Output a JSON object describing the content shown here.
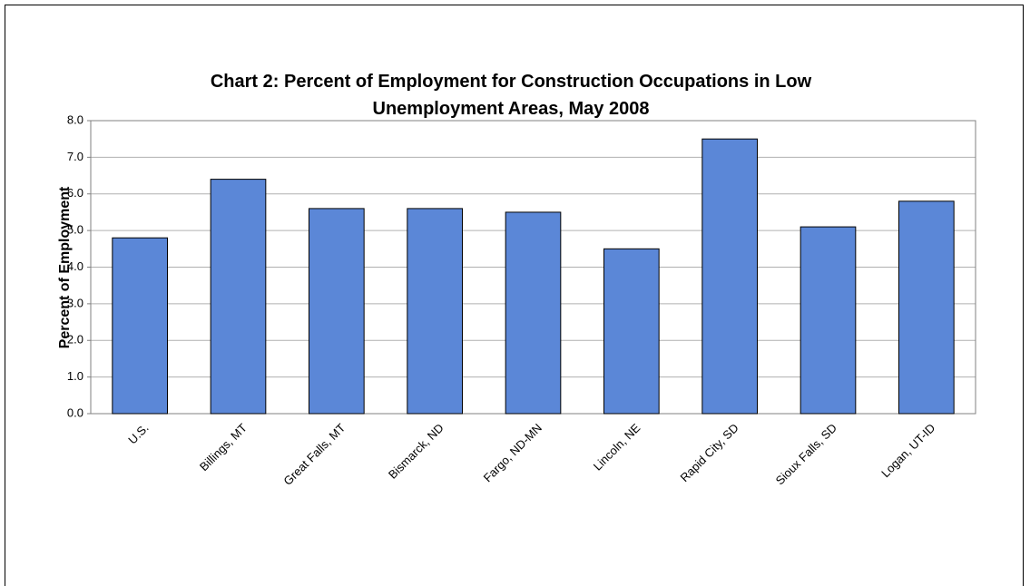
{
  "chart_data": {
    "type": "bar",
    "title": "Chart 2: Percent of Employment for Construction Occupations in Low Unemployment Areas, May 2008",
    "y_label": "Percent of Employment",
    "categories": [
      "U.S.",
      "Billings, MT",
      "Great Falls, MT",
      "Bismarck, ND",
      "Fargo, ND-MN",
      "Lincoln, NE",
      "Rapid City, SD",
      "Sioux Falls, SD",
      "Logan, UT-ID"
    ],
    "values": [
      4.8,
      6.4,
      5.6,
      5.6,
      5.5,
      4.5,
      7.5,
      5.1,
      5.8
    ],
    "color": "#5b87d7",
    "ylim": [
      0,
      8
    ],
    "yticks": [
      {
        "value": 0,
        "label": "0.0"
      },
      {
        "value": 1,
        "label": "1.0"
      },
      {
        "value": 2,
        "label": "2.0"
      },
      {
        "value": 3,
        "label": "3.0"
      },
      {
        "value": 4,
        "label": "4.0"
      },
      {
        "value": 5,
        "label": "5.0"
      },
      {
        "value": 6,
        "label": "6.0"
      },
      {
        "value": 7,
        "label": "7.0"
      },
      {
        "value": 8,
        "label": "8.0"
      }
    ],
    "grid": true
  }
}
